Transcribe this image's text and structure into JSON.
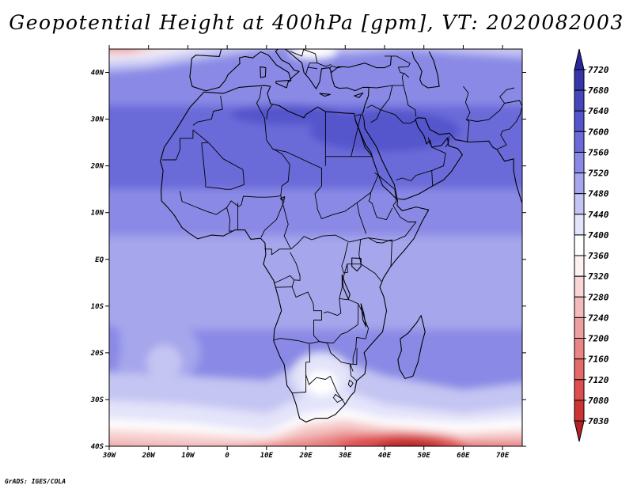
{
  "title": "Geopotential Height at 400hPa [gpm], VT: 2020082003",
  "credit": "GrADS: IGES/COLA",
  "chart_data": {
    "type": "heatmap",
    "variable": "Geopotential Height",
    "level": "400hPa",
    "units": "gpm",
    "valid_time": "2020082003",
    "x_range": [
      -30,
      75
    ],
    "y_range": [
      -40,
      45
    ],
    "x_ticks": [
      {
        "value": -30,
        "label": "30W"
      },
      {
        "value": -20,
        "label": "20W"
      },
      {
        "value": -10,
        "label": "10W"
      },
      {
        "value": 0,
        "label": "0"
      },
      {
        "value": 10,
        "label": "10E"
      },
      {
        "value": 20,
        "label": "20E"
      },
      {
        "value": 30,
        "label": "30E"
      },
      {
        "value": 40,
        "label": "40E"
      },
      {
        "value": 50,
        "label": "50E"
      },
      {
        "value": 60,
        "label": "60E"
      },
      {
        "value": 70,
        "label": "70E"
      }
    ],
    "y_ticks": [
      {
        "value": 40,
        "label": "40N"
      },
      {
        "value": 30,
        "label": "30N"
      },
      {
        "value": 20,
        "label": "20N"
      },
      {
        "value": 10,
        "label": "10N"
      },
      {
        "value": 0,
        "label": "EQ"
      },
      {
        "value": -10,
        "label": "10S"
      },
      {
        "value": -20,
        "label": "20S"
      },
      {
        "value": -30,
        "label": "30S"
      },
      {
        "value": -40,
        "label": "40S"
      }
    ],
    "colorbar": {
      "levels": [
        7030,
        7080,
        7120,
        7160,
        7200,
        7240,
        7280,
        7320,
        7360,
        7400,
        7440,
        7480,
        7520,
        7560,
        7600,
        7640,
        7680,
        7720
      ],
      "colors": [
        "#b22222",
        "#cd3333",
        "#dd4f4f",
        "#e46a6a",
        "#e98585",
        "#eea0a0",
        "#f3bcbc",
        "#f8d6d6",
        "#fdf1f1",
        "#ffffff",
        "#e3e3fa",
        "#c5c5f3",
        "#a6a6ec",
        "#8a8ae6",
        "#6a6ad9",
        "#5454cc",
        "#4646bb",
        "#3636a8",
        "#28289a"
      ],
      "extend": "both"
    },
    "features": [
      {
        "name": "southern-trough",
        "lat": -39.5,
        "lon": 45,
        "value": 7030
      },
      {
        "name": "northwest-low",
        "lat": 45,
        "lon": -25,
        "value": 7240
      },
      {
        "name": "south-african-low",
        "lat": -25,
        "lon": 23,
        "value": 7440
      },
      {
        "name": "south-atlantic-low",
        "lat": -19,
        "lon": -18,
        "value": 7480
      },
      {
        "name": "arabian-high",
        "lat": 29,
        "lon": 40,
        "value": 7640
      },
      {
        "name": "saharan-high",
        "lat": 27,
        "lon": 5,
        "value": 7600
      }
    ]
  }
}
